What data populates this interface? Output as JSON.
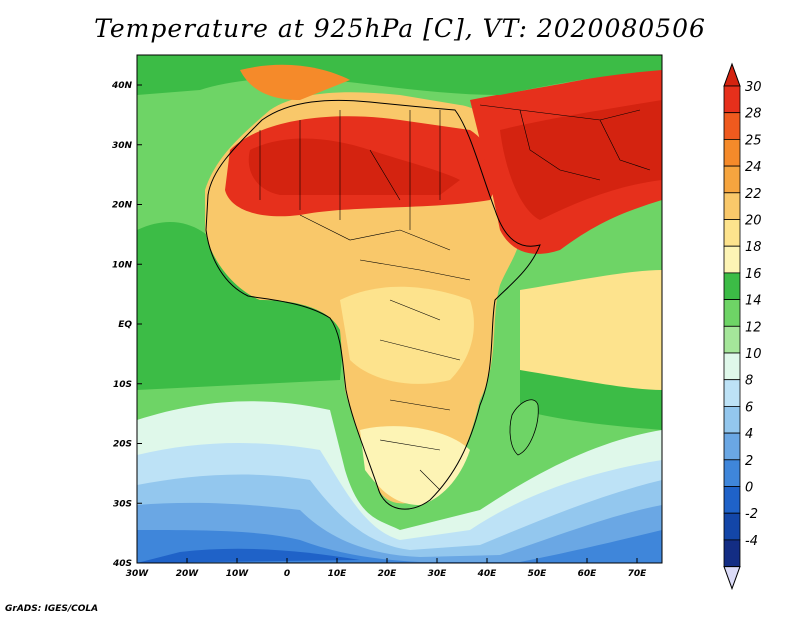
{
  "title": "Temperature at 925hPa [C], VT: 2020080506",
  "credit": "GrADS: IGES/COLA",
  "axes": {
    "lon_labels": [
      "30W",
      "20W",
      "10W",
      "0",
      "10E",
      "20E",
      "30E",
      "40E",
      "50E",
      "60E",
      "70E"
    ],
    "lat_labels": [
      "40N",
      "30N",
      "20N",
      "10N",
      "EQ",
      "10S",
      "20S",
      "30S",
      "40S"
    ]
  },
  "colorbar": {
    "labels": [
      "30",
      "28",
      "25",
      "24",
      "22",
      "20",
      "18",
      "16",
      "14",
      "12",
      "10",
      "8",
      "6",
      "4",
      "2",
      "0",
      "-2",
      "-4"
    ],
    "colors": [
      "#e6301c",
      "#ef5a1e",
      "#f58a2a",
      "#f6a53f",
      "#f9c86a",
      "#fde38d",
      "#fdf4b5",
      "#3cbc46",
      "#6ed466",
      "#a5e69a",
      "#dff8ea",
      "#bde2f6",
      "#93c7ee",
      "#6aa7e4",
      "#3f86da",
      "#1f62c8",
      "#1346a8",
      "#132d84"
    ],
    "top_color": "#d42310",
    "bottom_color": "#dcdcf8"
  },
  "palette": {
    "c30": "#d42310",
    "c28": "#e6301c",
    "c25": "#ef5a1e",
    "c24": "#f58a2a",
    "c22": "#f6a53f",
    "c20": "#f9c86a",
    "c18": "#fde38d",
    "c16": "#fdf4b5",
    "c14": "#3cbc46",
    "c12": "#6ed466",
    "c10": "#a5e69a",
    "c8": "#dff8ea",
    "c6": "#bde2f6",
    "c4": "#93c7ee",
    "c2": "#6aa7e4",
    "c0": "#3f86da",
    "cm2": "#1f62c8",
    "cm4": "#1346a8"
  }
}
